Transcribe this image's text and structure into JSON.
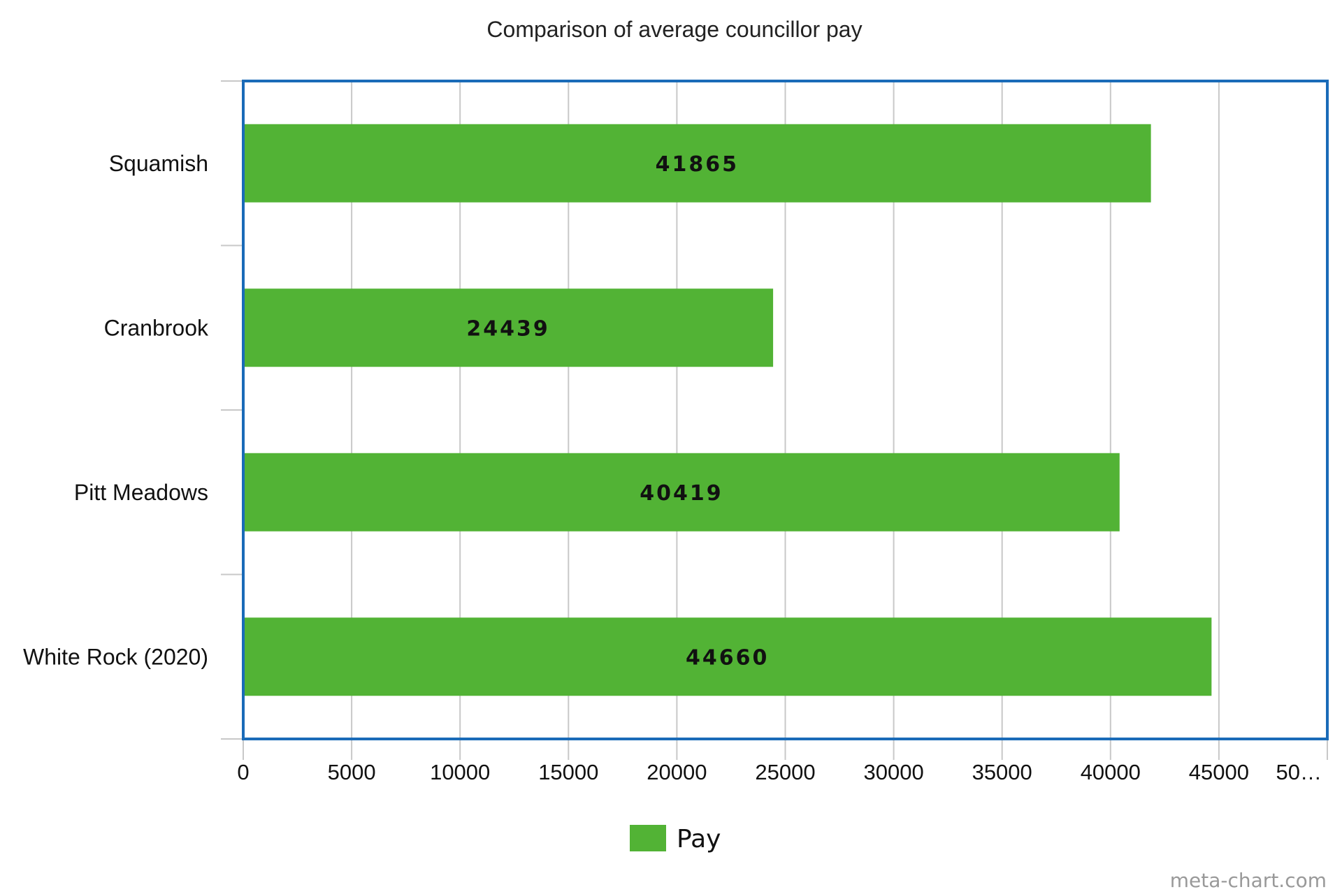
{
  "chart_data": {
    "type": "bar",
    "orientation": "horizontal",
    "title": "Comparison of average councillor pay",
    "categories": [
      "Squamish",
      "Cranbrook",
      "Pitt Meadows",
      "White Rock (2020)"
    ],
    "series": [
      {
        "name": "Pay",
        "values": [
          41865,
          24439,
          40419,
          44660
        ],
        "color": "#52b335"
      }
    ],
    "x_ticks": [
      "0",
      "5000",
      "10000",
      "15000",
      "20000",
      "25000",
      "30000",
      "35000",
      "40000",
      "45000",
      "50…"
    ],
    "xlim": [
      0,
      50000
    ],
    "grid": true,
    "legend": "bottom-center",
    "frame_color": "#1a6bb8",
    "grid_color": "#c8c8c8"
  },
  "credit": "meta-chart.com"
}
